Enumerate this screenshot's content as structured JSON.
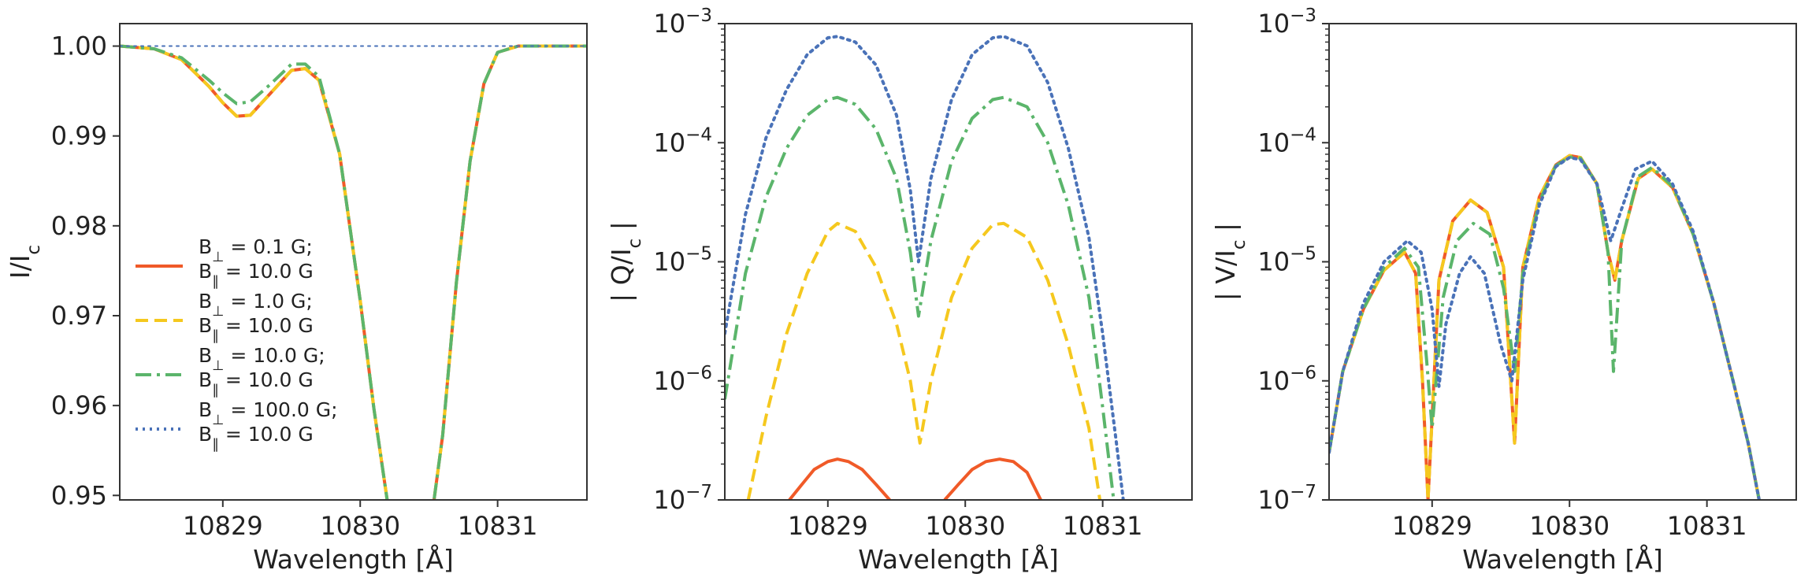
{
  "chart_data": [
    {
      "type": "line",
      "panel": "I",
      "xlabel": "Wavelength [Å]",
      "ylabel": "I/I_c",
      "xlim": [
        10828.25,
        10831.65
      ],
      "ylim": [
        0.9495,
        1.0025
      ],
      "yscale": "linear",
      "xticks": [
        10829,
        10830,
        10831
      ],
      "xtick_labels": [
        "10829",
        "10830",
        "10831"
      ],
      "yticks": [
        0.95,
        0.96,
        0.97,
        0.98,
        0.99,
        1.0
      ],
      "ytick_labels": [
        "0.95",
        "0.96",
        "0.97",
        "0.98",
        "0.99",
        "1.00"
      ],
      "legend": "center-left",
      "series": [
        {
          "name": "B_⊥ = 0.1 G; B_∥ = 10.0 G",
          "color": "#f05a28",
          "style": "solid",
          "x": [
            10828.25,
            10828.5,
            10828.7,
            10828.9,
            10829.0,
            10829.1,
            10829.2,
            10829.35,
            10829.5,
            10829.6,
            10829.7,
            10829.85,
            10830.0,
            10830.1,
            10830.2,
            10830.3,
            10830.38,
            10830.5,
            10830.6,
            10830.7,
            10830.8,
            10830.9,
            10831.0,
            10831.15,
            10831.35,
            10831.65
          ],
          "y": [
            1.0,
            0.9997,
            0.9985,
            0.9955,
            0.9937,
            0.9922,
            0.9923,
            0.9948,
            0.9973,
            0.9975,
            0.9962,
            0.988,
            0.9717,
            0.9596,
            0.9491,
            0.9422,
            0.9405,
            0.9452,
            0.9567,
            0.9737,
            0.9872,
            0.9958,
            0.9993,
            1.0,
            1.0,
            1.0
          ]
        },
        {
          "name": "B_⊥ = 1.0 G; B_∥ = 10.0 G",
          "color": "#f5c81e",
          "style": "dashed",
          "x": [
            10828.25,
            10828.5,
            10828.7,
            10828.9,
            10829.0,
            10829.1,
            10829.2,
            10829.35,
            10829.5,
            10829.6,
            10829.7,
            10829.85,
            10830.0,
            10830.1,
            10830.2,
            10830.3,
            10830.38,
            10830.5,
            10830.6,
            10830.7,
            10830.8,
            10830.9,
            10831.0,
            10831.15,
            10831.35,
            10831.65
          ],
          "y": [
            1.0,
            0.9997,
            0.9985,
            0.9955,
            0.9937,
            0.9922,
            0.9923,
            0.9948,
            0.9973,
            0.9975,
            0.9962,
            0.988,
            0.9717,
            0.9596,
            0.9491,
            0.9422,
            0.9405,
            0.9452,
            0.9567,
            0.9737,
            0.9872,
            0.9958,
            0.9993,
            1.0,
            1.0,
            1.0
          ]
        },
        {
          "name": "B_⊥ = 10.0 G; B_∥ = 10.0 G",
          "color": "#5bb56b",
          "style": "dashdot",
          "x": [
            10828.25,
            10828.5,
            10828.7,
            10828.9,
            10829.0,
            10829.1,
            10829.2,
            10829.35,
            10829.5,
            10829.6,
            10829.7,
            10829.85,
            10830.0,
            10830.1,
            10830.2,
            10830.3,
            10830.38,
            10830.5,
            10830.6,
            10830.7,
            10830.8,
            10830.9,
            10831.0,
            10831.15,
            10831.35,
            10831.65
          ],
          "y": [
            1.0,
            0.9997,
            0.9987,
            0.9962,
            0.9948,
            0.9936,
            0.9938,
            0.9958,
            0.998,
            0.998,
            0.9966,
            0.988,
            0.9717,
            0.9596,
            0.9491,
            0.9422,
            0.9405,
            0.9452,
            0.9567,
            0.9737,
            0.9872,
            0.9958,
            0.9993,
            1.0,
            1.0,
            1.0
          ]
        },
        {
          "name": "B_⊥ = 100.0 G; B_∥ = 10.0 G",
          "color": "#4a72b8",
          "style": "dotted",
          "x": [
            10828.25,
            10831.65
          ],
          "y": [
            1.0,
            1.0
          ]
        }
      ]
    },
    {
      "type": "line",
      "panel": "Q",
      "xlabel": "Wavelength [Å]",
      "ylabel": "| Q/I_c |",
      "xlim": [
        10828.25,
        10831.65
      ],
      "ylim": [
        1e-07,
        0.001
      ],
      "yscale": "log",
      "xticks": [
        10829,
        10830,
        10831
      ],
      "xtick_labels": [
        "10829",
        "10830",
        "10831"
      ],
      "yticks": [
        1e-07,
        1e-06,
        1e-05,
        0.0001,
        0.001
      ],
      "ytick_mantissa": "10",
      "ytick_exponents": [
        "−7",
        "−6",
        "−5",
        "−4",
        "−3"
      ],
      "series": [
        {
          "name": "B_⊥ = 0.1 G; B_∥ = 10.0 G",
          "color": "#f05a28",
          "style": "solid",
          "x": [
            10828.72,
            10828.8,
            10828.9,
            10829.0,
            10829.07,
            10829.15,
            10829.25,
            10829.35,
            10829.45,
            null,
            10829.85,
            10829.95,
            10830.05,
            10830.15,
            10830.25,
            10830.35,
            10830.45,
            10830.55
          ],
          "y": [
            1e-07,
            1.3e-07,
            1.8e-07,
            2.1e-07,
            2.2e-07,
            2.1e-07,
            1.8e-07,
            1.35e-07,
            1e-07,
            null,
            1e-07,
            1.35e-07,
            1.8e-07,
            2.1e-07,
            2.2e-07,
            2.1e-07,
            1.7e-07,
            1e-07
          ]
        },
        {
          "name": "B_⊥ = 1.0 G; B_∥ = 10.0 G",
          "color": "#f5c81e",
          "style": "dashed",
          "x": [
            10828.42,
            10828.55,
            10828.7,
            10828.85,
            10829.0,
            10829.07,
            10829.2,
            10829.35,
            10829.5,
            10829.6,
            10829.67,
            10829.75,
            10829.9,
            10830.05,
            10830.2,
            10830.28,
            10830.45,
            10830.6,
            10830.75,
            10830.9,
            10830.98
          ],
          "y": [
            1e-07,
            5e-07,
            2.5e-06,
            8e-06,
            1.8e-05,
            2.1e-05,
            1.8e-05,
            9e-06,
            3e-06,
            1e-06,
            3e-07,
            1e-06,
            5e-06,
            1.3e-05,
            2.05e-05,
            2.1e-05,
            1.6e-05,
            7e-06,
            2e-06,
            4e-07,
            1e-07
          ]
        },
        {
          "name": "B_⊥ = 10.0 G; B_∥ = 10.0 G",
          "color": "#5bb56b",
          "style": "dashdot",
          "x": [
            10828.25,
            10828.4,
            10828.55,
            10828.7,
            10828.85,
            10829.0,
            10829.07,
            10829.2,
            10829.35,
            10829.5,
            10829.6,
            10829.66,
            10829.75,
            10829.9,
            10830.05,
            10830.2,
            10830.28,
            10830.45,
            10830.6,
            10830.75,
            10830.9,
            10831.0,
            10831.08
          ],
          "y": [
            7e-07,
            8e-06,
            3.5e-05,
            9e-05,
            0.00017,
            0.00023,
            0.00024,
            0.00021,
            0.00013,
            5e-05,
            1.2e-05,
            3.5e-06,
            1.5e-05,
            7e-05,
            0.00016,
            0.00023,
            0.00024,
            0.0002,
            0.0001,
            3e-05,
            5e-06,
            6e-07,
            1e-07
          ]
        },
        {
          "name": "B_⊥ = 100.0 G; B_∥ = 10.0 G",
          "color": "#4a72b8",
          "style": "dotted",
          "x": [
            10828.25,
            10828.4,
            10828.55,
            10828.7,
            10828.85,
            10829.0,
            10829.07,
            10829.2,
            10829.35,
            10829.5,
            10829.6,
            10829.66,
            10829.75,
            10829.9,
            10830.05,
            10830.2,
            10830.28,
            10830.45,
            10830.6,
            10830.75,
            10830.9,
            10831.0,
            10831.1,
            10831.15
          ],
          "y": [
            2.5e-06,
            2.5e-05,
            0.00011,
            0.00028,
            0.00055,
            0.00076,
            0.00078,
            0.0007,
            0.00045,
            0.00017,
            4e-05,
            1e-05,
            5e-05,
            0.00023,
            0.00055,
            0.00076,
            0.00078,
            0.00065,
            0.00032,
            9e-05,
            1.6e-05,
            2.5e-06,
            3e-07,
            1e-07
          ]
        }
      ]
    },
    {
      "type": "line",
      "panel": "V",
      "xlabel": "Wavelength [Å]",
      "ylabel": "| V/I_c |",
      "xlim": [
        10828.25,
        10831.65
      ],
      "ylim": [
        1e-07,
        0.001
      ],
      "yscale": "log",
      "xticks": [
        10829,
        10830,
        10831
      ],
      "xtick_labels": [
        "10829",
        "10830",
        "10831"
      ],
      "yticks": [
        1e-07,
        1e-06,
        1e-05,
        0.0001,
        0.001
      ],
      "ytick_mantissa": "10",
      "ytick_exponents": [
        "−7",
        "−6",
        "−5",
        "−4",
        "−3"
      ],
      "series": [
        {
          "name": "B_⊥ = 0.1 G; B_∥ = 10.0 G",
          "color": "#f05a28",
          "style": "solid",
          "x": [
            10828.25,
            10828.35,
            10828.5,
            10828.65,
            10828.8,
            10828.88,
            10828.93,
            10828.97,
            10829.05,
            10829.15,
            10829.28,
            10829.4,
            10829.52,
            10829.6,
            10829.66,
            10829.78,
            10829.9,
            10830.0,
            10830.08,
            10830.2,
            10830.28,
            10830.33,
            10830.38,
            10830.5,
            10830.6,
            10830.75,
            10830.9,
            10831.05,
            10831.2,
            10831.3,
            10831.38
          ],
          "y": [
            2.5e-07,
            1.2e-06,
            4e-06,
            8.5e-06,
            1.2e-05,
            8e-06,
            1e-06,
            1e-07,
            7e-06,
            2.2e-05,
            3.3e-05,
            2.6e-05,
            9e-06,
            3e-07,
            9e-06,
            3.5e-05,
            6.5e-05,
            7.8e-05,
            7.5e-05,
            4.5e-05,
            1.2e-05,
            7e-06,
            1.5e-05,
            5e-05,
            6e-05,
            4.2e-05,
            1.7e-05,
            4.5e-06,
            9e-07,
            3e-07,
            1e-07
          ]
        },
        {
          "name": "B_⊥ = 1.0 G; B_∥ = 10.0 G",
          "color": "#f5c81e",
          "style": "dashed",
          "x": [
            10828.25,
            10828.35,
            10828.5,
            10828.65,
            10828.8,
            10828.88,
            10828.93,
            10828.97,
            10829.05,
            10829.15,
            10829.28,
            10829.4,
            10829.52,
            10829.6,
            10829.66,
            10829.78,
            10829.9,
            10830.0,
            10830.08,
            10830.2,
            10830.28,
            10830.33,
            10830.38,
            10830.5,
            10830.6,
            10830.75,
            10830.9,
            10831.05,
            10831.2,
            10831.3,
            10831.38
          ],
          "y": [
            2.5e-07,
            1.2e-06,
            4e-06,
            8.5e-06,
            1.2e-05,
            8e-06,
            1e-06,
            1e-07,
            7e-06,
            2.2e-05,
            3.3e-05,
            2.6e-05,
            9e-06,
            3e-07,
            9e-06,
            3.5e-05,
            6.5e-05,
            7.8e-05,
            7.5e-05,
            4.5e-05,
            1.2e-05,
            7e-06,
            1.5e-05,
            5e-05,
            6e-05,
            4.2e-05,
            1.7e-05,
            4.5e-06,
            9e-07,
            3e-07,
            1e-07
          ]
        },
        {
          "name": "B_⊥ = 10.0 G; B_∥ = 10.0 G",
          "color": "#5bb56b",
          "style": "dashdot",
          "x": [
            10828.25,
            10828.35,
            10828.5,
            10828.65,
            10828.8,
            10828.9,
            10828.96,
            10829.0,
            10829.08,
            10829.18,
            10829.3,
            10829.42,
            10829.52,
            10829.6,
            10829.66,
            10829.78,
            10829.9,
            10830.0,
            10830.08,
            10830.2,
            10830.28,
            10830.32,
            10830.38,
            10830.5,
            10830.6,
            10830.75,
            10830.9,
            10831.05,
            10831.2,
            10831.3,
            10831.38
          ],
          "y": [
            2.5e-07,
            1.2e-06,
            4e-06,
            9e-06,
            1.3e-05,
            9e-06,
            1.5e-06,
            4e-07,
            5e-06,
            1.5e-05,
            2.1e-05,
            1.7e-05,
            6e-06,
            1.2e-06,
            8e-06,
            3.2e-05,
            6.4e-05,
            7.6e-05,
            7.4e-05,
            4.5e-05,
            1.2e-05,
            1.2e-06,
            1.5e-05,
            5.2e-05,
            6.2e-05,
            4.3e-05,
            1.7e-05,
            4.5e-06,
            9e-07,
            3e-07,
            1e-07
          ]
        },
        {
          "name": "B_⊥ = 100.0 G; B_∥ = 10.0 G",
          "color": "#4a72b8",
          "style": "dotted",
          "x": [
            10828.25,
            10828.35,
            10828.5,
            10828.65,
            10828.82,
            10828.92,
            10829.0,
            10829.05,
            10829.1,
            10829.2,
            10829.28,
            10829.38,
            10829.5,
            10829.58,
            10829.66,
            10829.78,
            10829.9,
            10830.0,
            10830.08,
            10830.2,
            10830.3,
            10830.38,
            10830.48,
            10830.6,
            10830.75,
            10830.9,
            10831.05,
            10831.2,
            10831.3,
            10831.38
          ],
          "y": [
            2.5e-07,
            1.2e-06,
            4.5e-06,
            1e-05,
            1.5e-05,
            1.2e-05,
            4e-06,
            9e-07,
            3e-06,
            8e-06,
            1.1e-05,
            8e-06,
            2e-06,
            1e-06,
            7e-06,
            3e-05,
            6.3e-05,
            7.5e-05,
            7.2e-05,
            4.5e-05,
            1.5e-05,
            2.8e-05,
            6e-05,
            7e-05,
            4.5e-05,
            1.8e-05,
            4.5e-06,
            9e-07,
            3e-07,
            1e-07
          ]
        }
      ]
    }
  ]
}
